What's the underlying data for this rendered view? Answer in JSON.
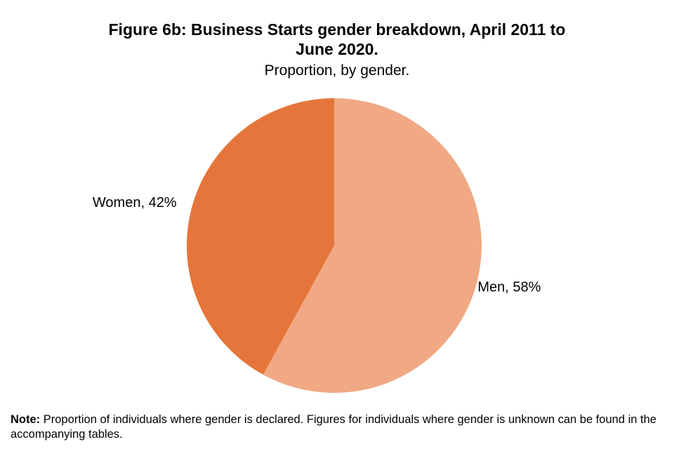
{
  "chart_data": {
    "type": "pie",
    "title_lines": [
      "Figure 6b: Business Starts gender breakdown, April 2011 to",
      "June 2020."
    ],
    "subtitle": "Proportion, by gender.",
    "slices": [
      {
        "name": "Men",
        "value": 58,
        "label": "Men, 58%",
        "color": "#F0A984"
      },
      {
        "name": "Women",
        "value": 42,
        "label": "Women, 42%",
        "color": "#E5753A"
      }
    ],
    "unit": "%",
    "start_angle_deg": 0,
    "direction": "clockwise",
    "legend": "none"
  },
  "note": {
    "label": "Note:",
    "text": " Proportion of individuals  where gender is declared. Figures for individuals  where gender is unknown can be found in the accompanying tables."
  }
}
